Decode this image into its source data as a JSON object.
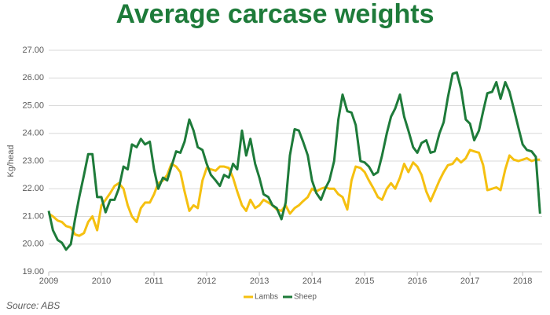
{
  "chart_data": {
    "type": "line",
    "title": "Average carcase weights",
    "y_label": "Kg/head",
    "source": "Source: ABS",
    "x": [
      2009.0,
      2009.08,
      2009.17,
      2009.25,
      2009.33,
      2009.42,
      2009.5,
      2009.58,
      2009.67,
      2009.75,
      2009.83,
      2009.92,
      2010.0,
      2010.08,
      2010.17,
      2010.25,
      2010.33,
      2010.42,
      2010.5,
      2010.58,
      2010.67,
      2010.75,
      2010.83,
      2010.92,
      2011.0,
      2011.08,
      2011.17,
      2011.25,
      2011.33,
      2011.42,
      2011.5,
      2011.58,
      2011.67,
      2011.75,
      2011.83,
      2011.92,
      2012.0,
      2012.08,
      2012.17,
      2012.25,
      2012.33,
      2012.42,
      2012.5,
      2012.58,
      2012.67,
      2012.75,
      2012.83,
      2012.92,
      2013.0,
      2013.08,
      2013.17,
      2013.25,
      2013.33,
      2013.42,
      2013.5,
      2013.58,
      2013.67,
      2013.75,
      2013.83,
      2013.92,
      2014.0,
      2014.08,
      2014.17,
      2014.25,
      2014.33,
      2014.42,
      2014.5,
      2014.58,
      2014.67,
      2014.75,
      2014.83,
      2014.92,
      2015.0,
      2015.08,
      2015.17,
      2015.25,
      2015.33,
      2015.42,
      2015.5,
      2015.58,
      2015.67,
      2015.75,
      2015.83,
      2015.92,
      2016.0,
      2016.08,
      2016.17,
      2016.25,
      2016.33,
      2016.42,
      2016.5,
      2016.58,
      2016.67,
      2016.75,
      2016.83,
      2016.92,
      2017.0,
      2017.08,
      2017.17,
      2017.25,
      2017.33,
      2017.42,
      2017.5,
      2017.58,
      2017.67,
      2017.75,
      2017.83,
      2017.92,
      2018.0,
      2018.08,
      2018.17,
      2018.25,
      2018.33
    ],
    "series": [
      {
        "name": "Lambs",
        "color": "#f5c010",
        "values": [
          21.1,
          21.0,
          20.85,
          20.8,
          20.65,
          20.6,
          20.35,
          20.3,
          20.4,
          20.8,
          21.0,
          20.5,
          21.4,
          21.6,
          21.85,
          22.1,
          22.2,
          22.0,
          21.4,
          21.0,
          20.8,
          21.3,
          21.5,
          21.5,
          21.8,
          22.2,
          22.3,
          22.5,
          22.9,
          22.8,
          22.6,
          21.9,
          21.2,
          21.4,
          21.3,
          22.3,
          22.75,
          22.7,
          22.65,
          22.8,
          22.8,
          22.75,
          22.4,
          21.9,
          21.4,
          21.2,
          21.6,
          21.3,
          21.4,
          21.6,
          21.5,
          21.4,
          21.25,
          21.2,
          21.4,
          21.1,
          21.3,
          21.4,
          21.55,
          21.7,
          22.0,
          21.9,
          22.0,
          22.05,
          22.0,
          22.0,
          21.8,
          21.7,
          21.25,
          22.3,
          22.8,
          22.75,
          22.6,
          22.3,
          22.0,
          21.7,
          21.6,
          22.0,
          22.2,
          22.0,
          22.4,
          22.9,
          22.6,
          22.95,
          22.8,
          22.5,
          21.9,
          21.55,
          21.9,
          22.3,
          22.6,
          22.85,
          22.9,
          23.1,
          22.95,
          23.1,
          23.4,
          23.35,
          23.3,
          22.85,
          21.95,
          22.0,
          22.05,
          21.95,
          22.7,
          23.2,
          23.05,
          23.0,
          23.05,
          23.1,
          23.0,
          23.05,
          23.05
        ]
      },
      {
        "name": "Sheep",
        "color": "#1e7b3a",
        "values": [
          21.2,
          20.5,
          20.15,
          20.05,
          19.8,
          20.0,
          20.9,
          21.7,
          22.5,
          23.25,
          23.25,
          21.7,
          21.7,
          21.15,
          21.6,
          21.6,
          22.0,
          22.8,
          22.7,
          23.6,
          23.5,
          23.8,
          23.6,
          23.7,
          22.7,
          22.0,
          22.4,
          22.3,
          22.8,
          23.35,
          23.3,
          23.7,
          24.5,
          24.1,
          23.5,
          23.4,
          22.9,
          22.5,
          22.3,
          22.1,
          22.5,
          22.4,
          22.9,
          22.7,
          24.1,
          23.2,
          23.8,
          22.9,
          22.4,
          21.8,
          21.7,
          21.4,
          21.3,
          20.9,
          21.5,
          23.2,
          24.15,
          24.1,
          23.7,
          23.2,
          22.3,
          21.85,
          21.6,
          22.0,
          22.3,
          23.0,
          24.5,
          25.4,
          24.8,
          24.75,
          24.3,
          23.0,
          22.95,
          22.8,
          22.5,
          22.6,
          23.2,
          24.0,
          24.6,
          24.9,
          25.4,
          24.6,
          24.1,
          23.5,
          23.3,
          23.65,
          23.75,
          23.3,
          23.35,
          24.0,
          24.4,
          25.3,
          26.15,
          26.2,
          25.6,
          24.5,
          24.35,
          23.75,
          24.1,
          24.8,
          25.45,
          25.5,
          25.85,
          25.25,
          25.85,
          25.5,
          24.9,
          24.2,
          23.6,
          23.4,
          23.35,
          23.15,
          21.1
        ]
      }
    ],
    "xlim": [
      2009,
      2018.37
    ],
    "xticks": [
      2009,
      2010,
      2011,
      2012,
      2013,
      2014,
      2015,
      2016,
      2017,
      2018
    ],
    "ylim": [
      19,
      27
    ],
    "yticks": [
      {
        "value": 19,
        "label": "19.00"
      },
      {
        "value": 20,
        "label": "20.00"
      },
      {
        "value": 21,
        "label": "21.00"
      },
      {
        "value": 22,
        "label": "22.00"
      },
      {
        "value": 23,
        "label": "23.00"
      },
      {
        "value": 24,
        "label": "24.00"
      },
      {
        "value": 25,
        "label": "25.00"
      },
      {
        "value": 26,
        "label": "26.00"
      },
      {
        "value": 27,
        "label": "27.00"
      }
    ],
    "grid": true,
    "legend": "bottom"
  }
}
